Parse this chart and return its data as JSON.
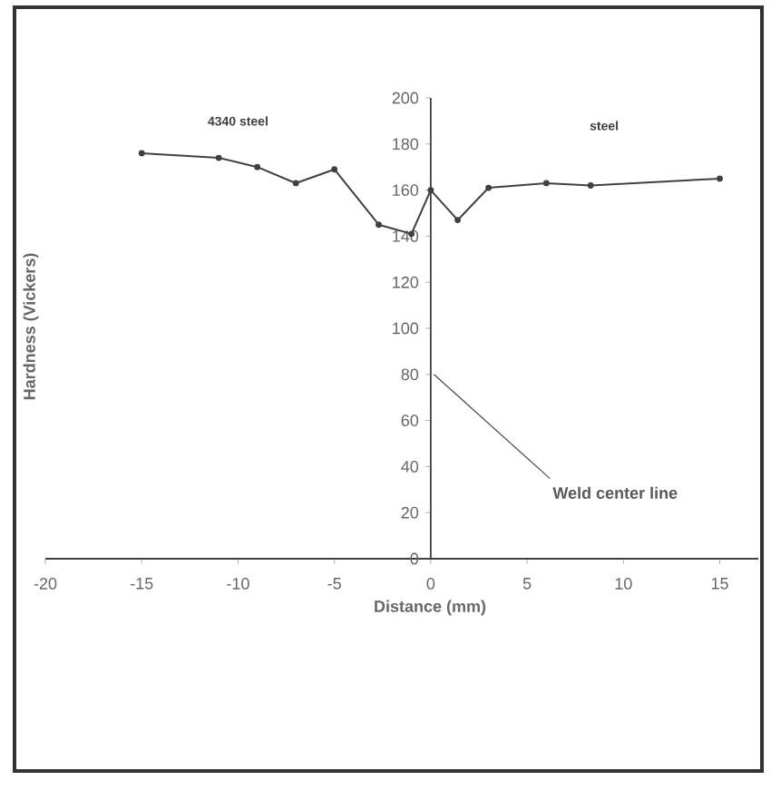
{
  "chart_data": {
    "type": "line",
    "xlabel": "Distance (mm)",
    "ylabel": "Hardness (Vickers)",
    "x": [
      -15,
      -11,
      -9,
      -7,
      -5,
      -2.7,
      -1,
      0,
      1.4,
      3,
      6,
      8.3,
      15
    ],
    "series": [
      {
        "color": "#404040",
        "values": [
          176,
          174,
          170,
          163,
          169,
          145,
          141,
          160,
          147,
          161,
          163,
          162,
          165
        ]
      }
    ],
    "xlim": [
      -20,
      17
    ],
    "ylim": [
      0,
      200
    ],
    "xticks": [
      -20,
      -15,
      -10,
      -5,
      0,
      5,
      10,
      15
    ],
    "yticks": [
      0,
      20,
      40,
      60,
      80,
      100,
      120,
      140,
      160,
      180,
      200
    ],
    "marker": "circle",
    "line_style": "solid",
    "annotations": [
      "4340 steel",
      "steel",
      "Weld center line"
    ]
  }
}
